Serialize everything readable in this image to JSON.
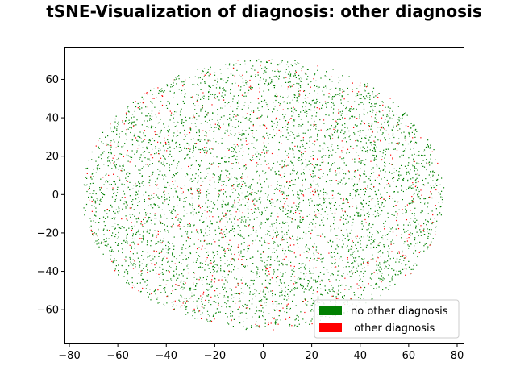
{
  "chart_data": {
    "type": "scatter",
    "title": "tSNE-Visualization of diagnosis: other diagnosis",
    "xlabel": "",
    "ylabel": "",
    "xlim": [
      -82,
      83
    ],
    "ylim": [
      -78,
      77
    ],
    "xticks": [
      -80,
      -60,
      -40,
      -20,
      0,
      20,
      40,
      60,
      80
    ],
    "yticks": [
      -60,
      -40,
      -20,
      0,
      20,
      40,
      60
    ],
    "xtick_labels": [
      "−80",
      "−60",
      "−40",
      "−20",
      "0",
      "20",
      "40",
      "60",
      "80"
    ],
    "ytick_labels": [
      "−60",
      "−40",
      "−20",
      "0",
      "20",
      "40",
      "60"
    ],
    "grid": false,
    "legend_position": "lower-right",
    "distribution": {
      "shape": "ellipse",
      "center": [
        0,
        0
      ],
      "x_extent": [
        -75,
        75
      ],
      "y_extent": [
        -71,
        71
      ]
    },
    "series": [
      {
        "name": "no other diagnosis",
        "color": "#008000",
        "approx_points": 4600
      },
      {
        "name": " other diagnosis",
        "color": "#ff0000",
        "approx_points": 700
      }
    ]
  }
}
